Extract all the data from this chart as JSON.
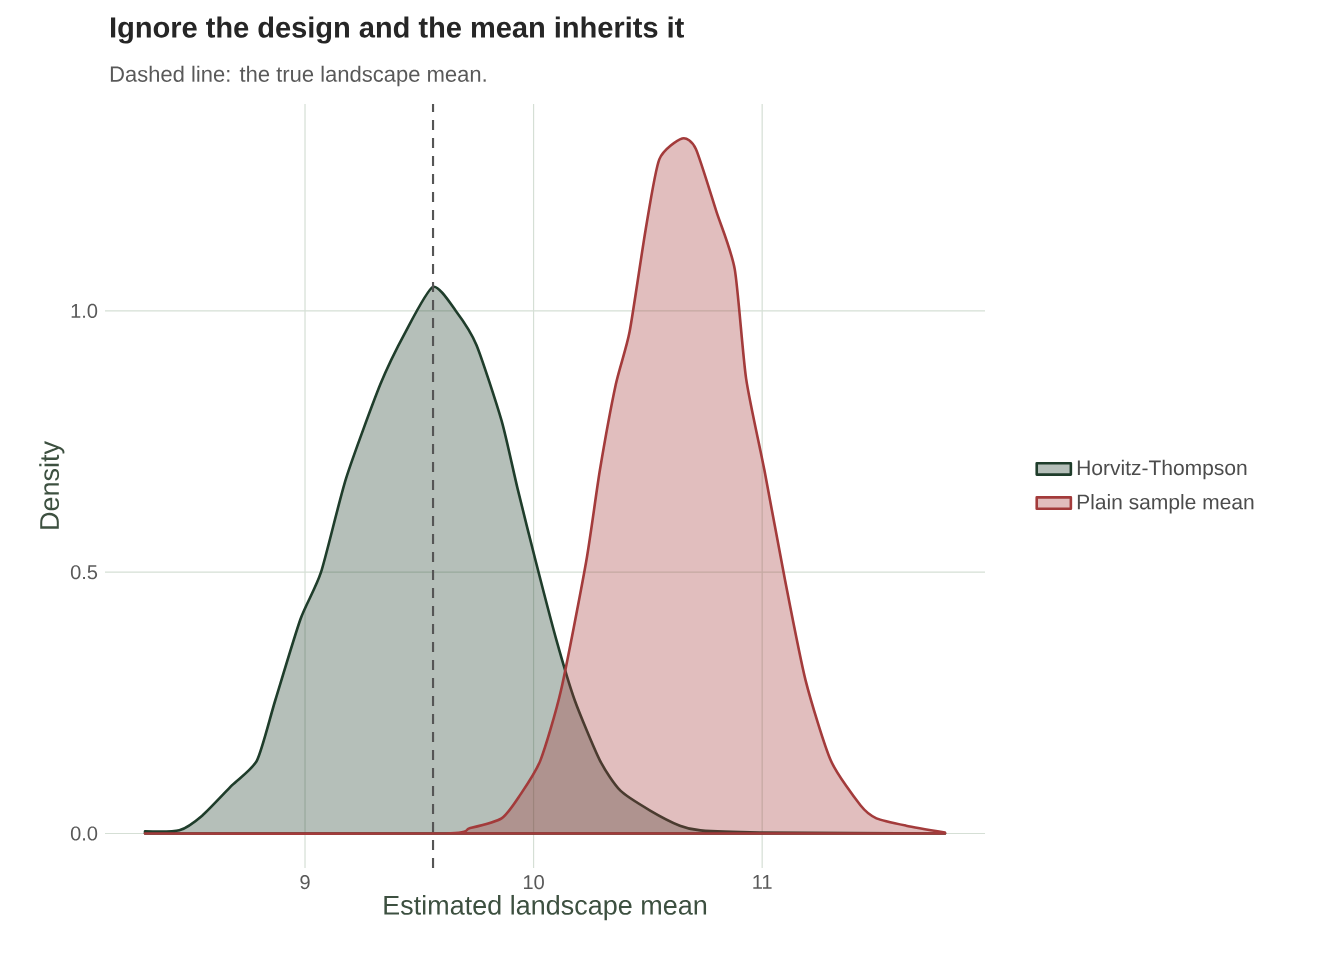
{
  "chart_data": {
    "type": "area",
    "title": "Ignore the design and the mean inherits it",
    "subtitle": "Dashed line: the true landscape mean.",
    "xlabel": "Estimated landscape mean",
    "ylabel": "Density",
    "series": [
      {
        "name": "Horvitz-Thompson",
        "color": "#1f3d2b",
        "x": [
          8.3,
          8.45,
          8.55,
          8.68,
          8.79,
          8.87,
          8.98,
          9.07,
          9.18,
          9.33,
          9.44,
          9.56,
          9.66,
          9.75,
          9.86,
          9.93,
          10.01,
          10.1,
          10.18,
          10.29,
          10.38,
          10.51,
          10.64,
          10.73,
          10.99,
          11.8
        ],
        "values": [
          0.004,
          0.006,
          0.034,
          0.092,
          0.14,
          0.255,
          0.41,
          0.5,
          0.68,
          0.86,
          0.96,
          1.046,
          1.0,
          0.935,
          0.79,
          0.66,
          0.52,
          0.37,
          0.255,
          0.14,
          0.082,
          0.044,
          0.015,
          0.006,
          0.002,
          0
        ]
      },
      {
        "name": "Plain sample mean",
        "color": "#a33b3b",
        "x": [
          8.3,
          9.59,
          9.72,
          9.86,
          9.94,
          10.03,
          10.12,
          10.23,
          10.29,
          10.36,
          10.42,
          10.49,
          10.55,
          10.65,
          10.71,
          10.8,
          10.88,
          10.93,
          11.01,
          11.1,
          11.19,
          11.3,
          11.43,
          11.5,
          11.63,
          11.8
        ],
        "values": [
          0,
          0,
          0.01,
          0.029,
          0.073,
          0.14,
          0.274,
          0.52,
          0.695,
          0.86,
          0.96,
          1.155,
          1.29,
          1.33,
          1.31,
          1.19,
          1.08,
          0.87,
          0.695,
          0.485,
          0.293,
          0.14,
          0.054,
          0.029,
          0.015,
          0.002
        ]
      }
    ],
    "xlim": [
      8.125,
      11.975
    ],
    "ylim": [
      -0.066,
      1.396
    ],
    "xticks": [
      9,
      10,
      11
    ],
    "yticks": [
      {
        "value": 0,
        "label": "0.0"
      },
      {
        "value": 0.5,
        "label": "0.5"
      },
      {
        "value": 1,
        "label": "1.0"
      }
    ],
    "grid": true,
    "legend": "right",
    "ref_lines": [
      {
        "axis": "x",
        "value": 9.56,
        "color": "#555555",
        "line_style": "dashed"
      }
    ]
  }
}
